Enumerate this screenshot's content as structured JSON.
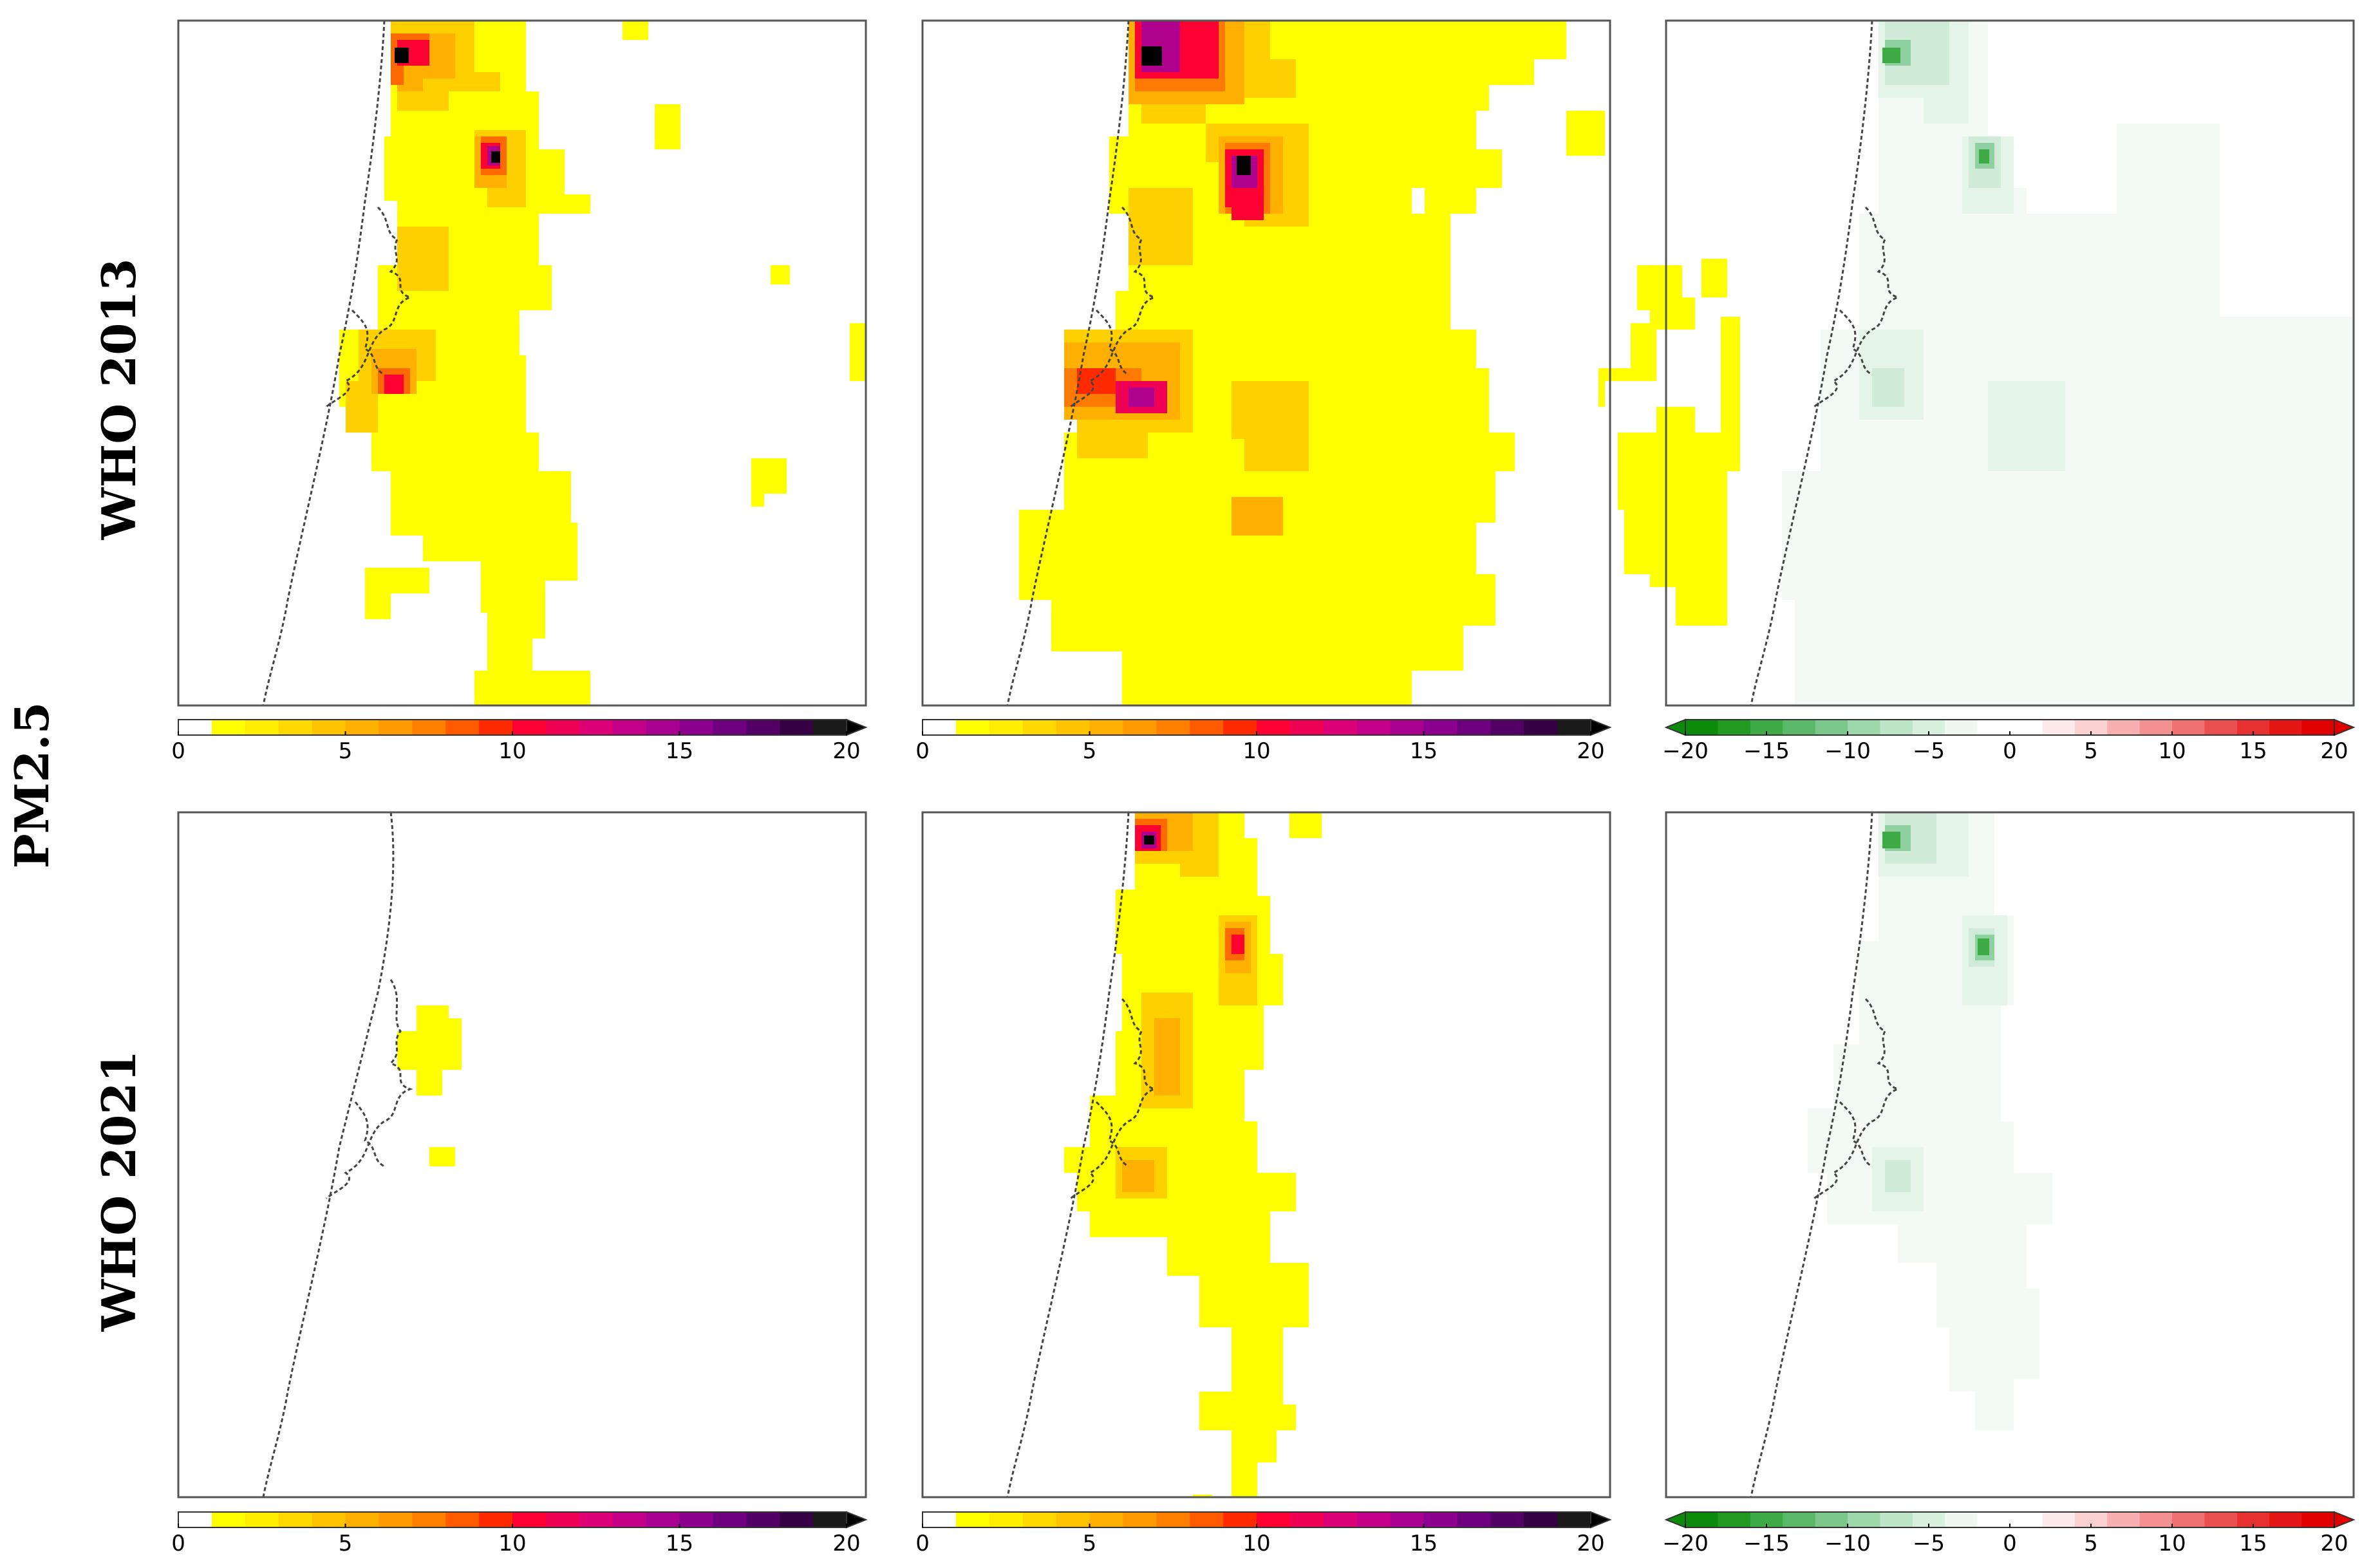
{
  "figure": {
    "pollutant_label": "PM2.5",
    "row_labels": [
      "WHO 2013",
      "WHO 2021"
    ]
  },
  "colorbars": {
    "sequential": {
      "tick_labels": [
        "0",
        "5",
        "10",
        "15",
        "20"
      ],
      "ticks": [
        0,
        5,
        10,
        15,
        20
      ],
      "min": 0,
      "max": 20,
      "extend": "max",
      "step": 1,
      "colors": [
        "#ffffff",
        "#ffff00",
        "#ffee00",
        "#ffd800",
        "#ffc400",
        "#ffb000",
        "#ff9a00",
        "#ff8000",
        "#ff5a00",
        "#ff2a00",
        "#ff0033",
        "#ee0055",
        "#dd0077",
        "#c40088",
        "#a80090",
        "#8c0090",
        "#6e0080",
        "#520066",
        "#350044",
        "#1a1a1a",
        "#000000"
      ]
    },
    "diverging": {
      "tick_labels": [
        "−20",
        "−15",
        "−10",
        "−5",
        "0",
        "5",
        "10",
        "15",
        "20"
      ],
      "ticks": [
        -20,
        -15,
        -10,
        -5,
        0,
        5,
        10,
        15,
        20
      ],
      "min": -20,
      "max": 20,
      "extend": "both",
      "step": 2,
      "colors": [
        "#0b8a0b",
        "#229a22",
        "#3daa45",
        "#5bb868",
        "#7cc88a",
        "#9dd8aa",
        "#bde6c8",
        "#d8f0de",
        "#eef8f0",
        "#ffffff",
        "#ffffff",
        "#fdeaea",
        "#fbd0d0",
        "#f7b0b0",
        "#f39090",
        "#ef7070",
        "#eb5050",
        "#e73030",
        "#e31515",
        "#e00000"
      ]
    }
  },
  "panels": [
    {
      "row": 0,
      "col": 0,
      "colorbar": "sequential",
      "kind": "sequential"
    },
    {
      "row": 0,
      "col": 1,
      "colorbar": "sequential",
      "kind": "sequential"
    },
    {
      "row": 0,
      "col": 2,
      "colorbar": "diverging",
      "kind": "difference"
    },
    {
      "row": 1,
      "col": 0,
      "colorbar": "sequential",
      "kind": "sequential"
    },
    {
      "row": 1,
      "col": 1,
      "colorbar": "sequential",
      "kind": "sequential"
    },
    {
      "row": 1,
      "col": 2,
      "colorbar": "diverging",
      "kind": "difference"
    }
  ],
  "colors": {
    "frame": "#555555",
    "coastline": "#444444",
    "colorbar_frame": "#333333",
    "sequential_low": "#ffff00",
    "sequential_high": "#000000",
    "diverging_low": "#0b8a0b",
    "diverging_high": "#e00000"
  }
}
